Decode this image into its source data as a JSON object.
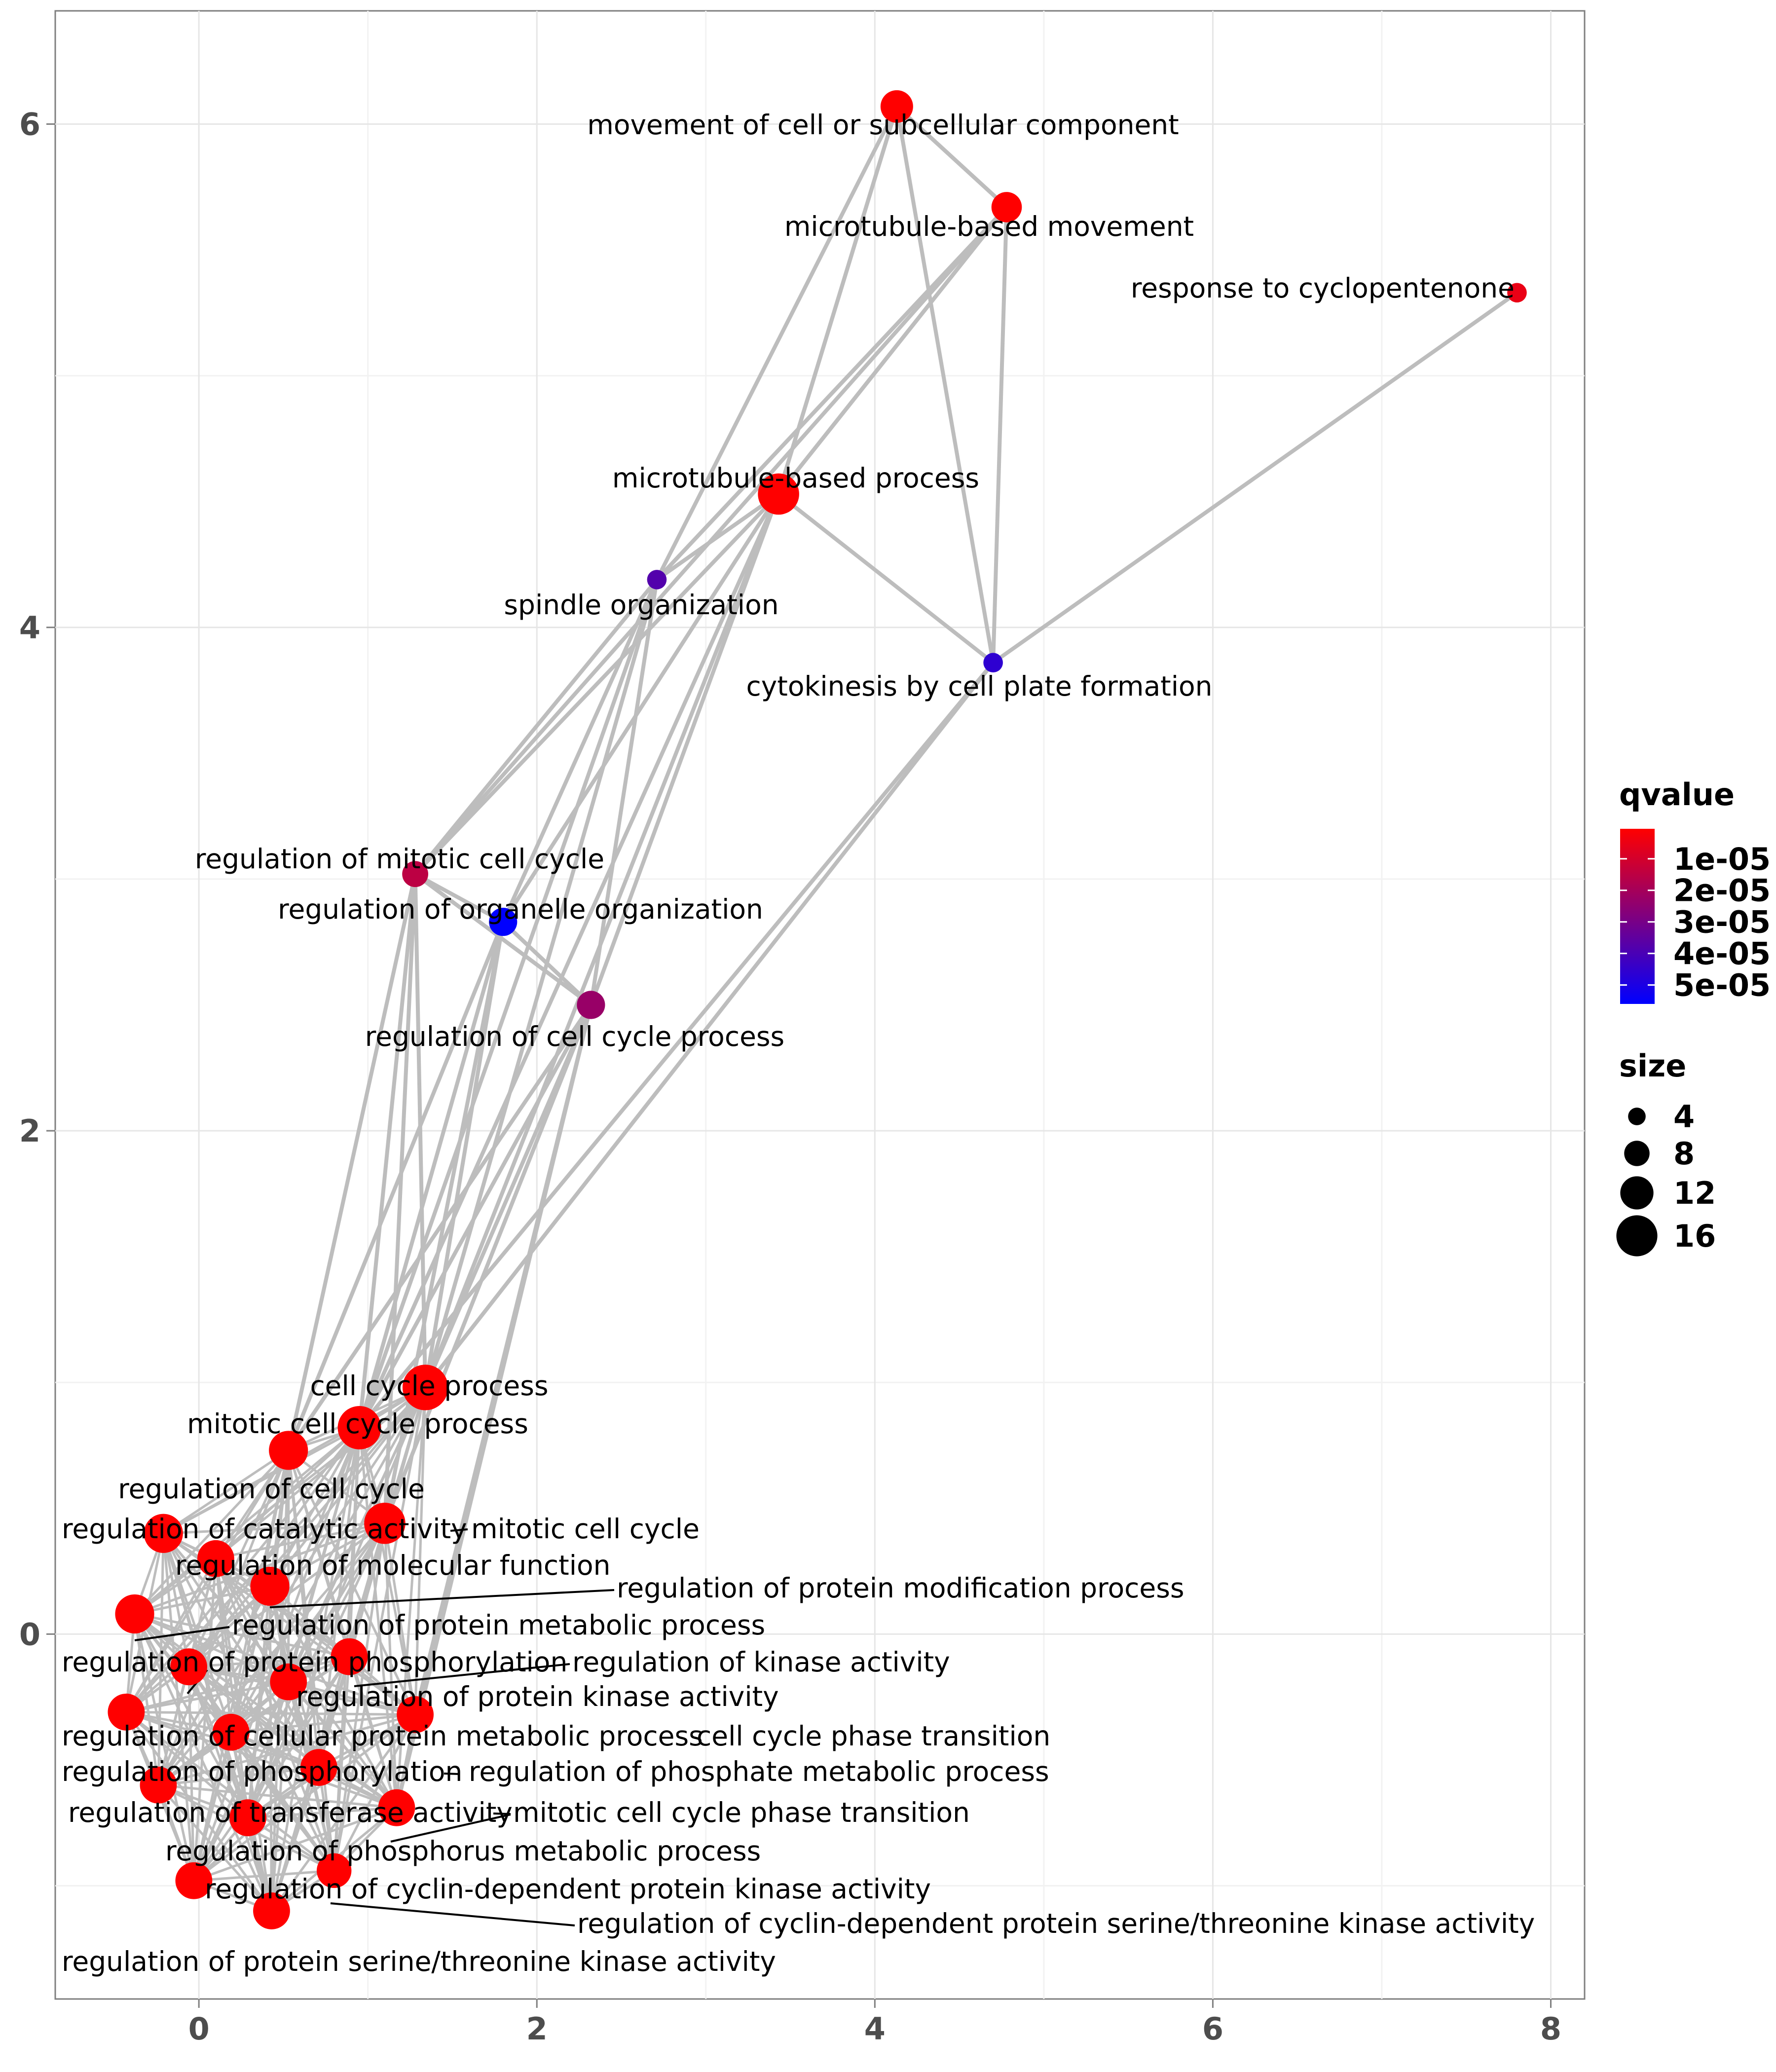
{
  "chart_data": {
    "type": "scatter",
    "subtype": "enrichment-map-network",
    "title": "",
    "xlabel": "",
    "ylabel": "",
    "xlim": [
      -0.85,
      8.2
    ],
    "ylim": [
      -1.45,
      6.45
    ],
    "x_ticks": [
      0,
      2,
      4,
      6,
      8
    ],
    "y_ticks": [
      0,
      2,
      4,
      6
    ],
    "grid": true,
    "edge_color": "#bdbdbd",
    "nodes": [
      {
        "label": "movement of cell or subcellular component",
        "x": 4.13,
        "y": 6.07,
        "size": 10,
        "qvalue": 5e-07
      },
      {
        "label": "microtubule-based movement",
        "x": 4.78,
        "y": 5.67,
        "size": 9,
        "qvalue": 5e-07
      },
      {
        "label": "response to cyclopentenone",
        "x": 7.8,
        "y": 5.33,
        "size": 4,
        "qvalue": 5e-06
      },
      {
        "label": "microtubule-based process",
        "x": 3.43,
        "y": 4.53,
        "size": 14,
        "qvalue": 5e-07
      },
      {
        "label": "spindle organization",
        "x": 2.71,
        "y": 4.19,
        "size": 4,
        "qvalue": 3.8e-05
      },
      {
        "label": "cytokinesis by cell plate formation",
        "x": 4.7,
        "y": 3.86,
        "size": 4,
        "qvalue": 4.6e-05
      },
      {
        "label": "regulation of mitotic cell cycle",
        "x": 1.28,
        "y": 3.02,
        "size": 7,
        "qvalue": 1.5e-05
      },
      {
        "label": "regulation of organelle organization",
        "x": 1.8,
        "y": 2.83,
        "size": 8,
        "qvalue": 5.6e-05
      },
      {
        "label": "regulation of cell cycle process",
        "x": 2.32,
        "y": 2.5,
        "size": 8,
        "qvalue": 2.3e-05
      },
      {
        "label": "cell cycle process",
        "x": 1.34,
        "y": 0.98,
        "size": 16,
        "qvalue": 5e-07
      },
      {
        "label": "mitotic cell cycle process",
        "x": 0.95,
        "y": 0.82,
        "size": 15,
        "qvalue": 5e-07
      },
      {
        "label": "regulation of cell cycle",
        "x": 0.53,
        "y": 0.73,
        "size": 13,
        "qvalue": 5e-07
      },
      {
        "label": "mitotic cell cycle",
        "x": 1.1,
        "y": 0.44,
        "size": 14,
        "qvalue": 5e-07
      },
      {
        "label": "regulation of catalytic activity",
        "x": -0.21,
        "y": 0.4,
        "size": 13,
        "qvalue": 5e-07
      },
      {
        "label": "regulation of molecular function",
        "x": 0.1,
        "y": 0.3,
        "size": 12,
        "qvalue": 5e-07
      },
      {
        "label": "regulation of protein modification process",
        "x": 0.42,
        "y": 0.19,
        "size": 13,
        "qvalue": 5e-07
      },
      {
        "label": "regulation of protein metabolic process",
        "x": -0.38,
        "y": 0.08,
        "size": 13,
        "qvalue": 5e-07
      },
      {
        "label": "regulation of kinase activity",
        "x": 0.89,
        "y": -0.09,
        "size": 12,
        "qvalue": 5e-07
      },
      {
        "label": "regulation of protein phosphorylation",
        "x": -0.06,
        "y": -0.13,
        "size": 12,
        "qvalue": 5e-07
      },
      {
        "label": "regulation of protein kinase activity",
        "x": 0.53,
        "y": -0.19,
        "size": 12,
        "qvalue": 5e-07
      },
      {
        "label": "regulation of cellular protein metabolic process",
        "x": -0.43,
        "y": -0.31,
        "size": 12,
        "qvalue": 5e-07
      },
      {
        "label": "cell cycle phase transition",
        "x": 1.28,
        "y": -0.32,
        "size": 12,
        "qvalue": 5e-07
      },
      {
        "label": "regulation of phosphorylation",
        "x": 0.19,
        "y": -0.39,
        "size": 12,
        "qvalue": 5e-07
      },
      {
        "label": "regulation of phosphate metabolic process",
        "x": 0.71,
        "y": -0.53,
        "size": 12,
        "qvalue": 5e-07
      },
      {
        "label": "regulation of transferase activity",
        "x": -0.24,
        "y": -0.6,
        "size": 12,
        "qvalue": 5e-07
      },
      {
        "label": "mitotic cell cycle phase transition",
        "x": 1.17,
        "y": -0.69,
        "size": 12,
        "qvalue": 5e-07
      },
      {
        "label": "regulation of phosphorus metabolic process",
        "x": 0.29,
        "y": -0.73,
        "size": 12,
        "qvalue": 5e-07
      },
      {
        "label": "regulation of cyclin-dependent protein kinase activity",
        "x": 0.8,
        "y": -0.94,
        "size": 11,
        "qvalue": 5e-07
      },
      {
        "label": "regulation of cyclin-dependent protein serine/threonine kinase activity",
        "x": -0.03,
        "y": -0.98,
        "size": 12,
        "qvalue": 5e-07
      },
      {
        "label": "regulation of protein serine/threonine kinase activity",
        "x": 0.43,
        "y": -1.1,
        "size": 12,
        "qvalue": 5e-07
      }
    ],
    "edges": [
      [
        0,
        1
      ],
      [
        0,
        1
      ],
      [
        0,
        3
      ],
      [
        0,
        3
      ],
      [
        0,
        4
      ],
      [
        0,
        5
      ],
      [
        1,
        3
      ],
      [
        1,
        3
      ],
      [
        1,
        4
      ],
      [
        1,
        4
      ],
      [
        1,
        5
      ],
      [
        1,
        6
      ],
      [
        2,
        5
      ],
      [
        3,
        4
      ],
      [
        3,
        4
      ],
      [
        3,
        5
      ],
      [
        3,
        6
      ],
      [
        3,
        7
      ],
      [
        3,
        8
      ],
      [
        3,
        9
      ],
      [
        3,
        10
      ],
      [
        4,
        6
      ],
      [
        4,
        7
      ],
      [
        4,
        8
      ],
      [
        4,
        9
      ],
      [
        4,
        10
      ],
      [
        5,
        9
      ],
      [
        5,
        10
      ],
      [
        6,
        7
      ],
      [
        6,
        8
      ],
      [
        6,
        8
      ],
      [
        6,
        9
      ],
      [
        6,
        10
      ],
      [
        6,
        11
      ],
      [
        6,
        12
      ],
      [
        7,
        8
      ],
      [
        7,
        8
      ],
      [
        7,
        9
      ],
      [
        7,
        10
      ],
      [
        7,
        11
      ],
      [
        7,
        12
      ],
      [
        8,
        9
      ],
      [
        8,
        10
      ],
      [
        8,
        11
      ],
      [
        8,
        12
      ],
      [
        8,
        21
      ],
      [
        8,
        25
      ]
    ],
    "legend": {
      "placement": "right",
      "color_title": "qvalue",
      "color_ticks": [
        "1e-05",
        "2e-05",
        "3e-05",
        "4e-05",
        "5e-05"
      ],
      "color_tick_values": [
        1e-05,
        2e-05,
        3e-05,
        4e-05,
        5e-05
      ],
      "color_low": "#ff0000",
      "color_high": "#0000ff",
      "color_range": [
        5e-07,
        5.6e-05
      ],
      "size_title": "size",
      "size_values": [
        4,
        8,
        12,
        16
      ]
    }
  }
}
